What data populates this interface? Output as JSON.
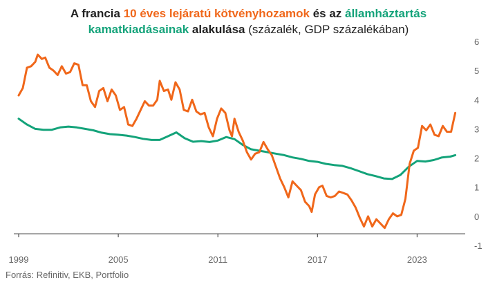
{
  "title": {
    "part1": "A francia ",
    "part2": "10 éves lejáratú kötvényhozamok",
    "part3": " és az ",
    "part4": "államháztartás",
    "part5": "kamatkiadásainak",
    "part6": " alakulása",
    "part7": " (százalék, GDP százalékában)"
  },
  "source": "Forrás: Refinitiv, EKB, Portfolio",
  "colors": {
    "bond": "#f0671a",
    "interest": "#14a37a",
    "axis": "#333333",
    "text": "#666666"
  },
  "chart_data": {
    "type": "line",
    "title": "A francia 10 éves lejáratú kötvényhozamok és az államháztartás kamatkiadásainak alakulása (százalék, GDP százalékában)",
    "xlabel": "",
    "ylabel": "",
    "xlim": [
      1999,
      2025.9
    ],
    "ylim": [
      -1,
      6
    ],
    "x_ticks": [
      1999,
      2005,
      2011,
      2017,
      2023
    ],
    "y_ticks": [
      6,
      5,
      4,
      3,
      2,
      1,
      0,
      -1
    ],
    "y_axis_side": "right",
    "grid": false,
    "legend": "none (series named in title)",
    "series": [
      {
        "name": "10 éves lejáratú kötvényhozamok",
        "color": "#f0671a",
        "points": [
          [
            1999.0,
            4.15
          ],
          [
            1999.25,
            4.4
          ],
          [
            1999.5,
            5.1
          ],
          [
            1999.75,
            5.15
          ],
          [
            2000.0,
            5.3
          ],
          [
            2000.15,
            5.55
          ],
          [
            2000.4,
            5.4
          ],
          [
            2000.6,
            5.45
          ],
          [
            2000.85,
            5.1
          ],
          [
            2001.1,
            5.0
          ],
          [
            2001.35,
            4.85
          ],
          [
            2001.6,
            5.15
          ],
          [
            2001.85,
            4.9
          ],
          [
            2002.1,
            4.95
          ],
          [
            2002.35,
            5.25
          ],
          [
            2002.6,
            5.2
          ],
          [
            2002.85,
            4.5
          ],
          [
            2003.1,
            4.5
          ],
          [
            2003.35,
            3.95
          ],
          [
            2003.6,
            3.75
          ],
          [
            2003.85,
            4.3
          ],
          [
            2004.1,
            4.4
          ],
          [
            2004.35,
            3.95
          ],
          [
            2004.6,
            4.35
          ],
          [
            2004.85,
            4.15
          ],
          [
            2005.1,
            3.65
          ],
          [
            2005.35,
            3.75
          ],
          [
            2005.6,
            3.15
          ],
          [
            2005.85,
            3.1
          ],
          [
            2006.1,
            3.35
          ],
          [
            2006.35,
            3.65
          ],
          [
            2006.6,
            3.95
          ],
          [
            2006.85,
            3.8
          ],
          [
            2007.1,
            3.8
          ],
          [
            2007.35,
            4.0
          ],
          [
            2007.5,
            4.65
          ],
          [
            2007.75,
            4.3
          ],
          [
            2008.0,
            4.35
          ],
          [
            2008.2,
            4.0
          ],
          [
            2008.45,
            4.6
          ],
          [
            2008.7,
            4.35
          ],
          [
            2008.95,
            3.65
          ],
          [
            2009.2,
            3.6
          ],
          [
            2009.45,
            4.0
          ],
          [
            2009.7,
            3.6
          ],
          [
            2009.95,
            3.5
          ],
          [
            2010.2,
            3.55
          ],
          [
            2010.45,
            3.05
          ],
          [
            2010.7,
            2.75
          ],
          [
            2010.95,
            3.35
          ],
          [
            2011.2,
            3.7
          ],
          [
            2011.45,
            3.55
          ],
          [
            2011.7,
            2.95
          ],
          [
            2011.85,
            2.75
          ],
          [
            2012.0,
            3.35
          ],
          [
            2012.25,
            2.9
          ],
          [
            2012.5,
            2.6
          ],
          [
            2012.75,
            2.2
          ],
          [
            2013.0,
            1.95
          ],
          [
            2013.25,
            2.15
          ],
          [
            2013.5,
            2.2
          ],
          [
            2013.75,
            2.55
          ],
          [
            2014.0,
            2.3
          ],
          [
            2014.25,
            2.1
          ],
          [
            2014.5,
            1.7
          ],
          [
            2014.75,
            1.3
          ],
          [
            2015.0,
            1.0
          ],
          [
            2015.25,
            0.65
          ],
          [
            2015.5,
            1.2
          ],
          [
            2015.75,
            1.05
          ],
          [
            2016.0,
            0.9
          ],
          [
            2016.25,
            0.5
          ],
          [
            2016.5,
            0.35
          ],
          [
            2016.65,
            0.15
          ],
          [
            2016.85,
            0.75
          ],
          [
            2017.1,
            1.0
          ],
          [
            2017.3,
            1.05
          ],
          [
            2017.55,
            0.7
          ],
          [
            2017.8,
            0.65
          ],
          [
            2018.05,
            0.7
          ],
          [
            2018.3,
            0.85
          ],
          [
            2018.55,
            0.8
          ],
          [
            2018.8,
            0.75
          ],
          [
            2019.05,
            0.55
          ],
          [
            2019.3,
            0.3
          ],
          [
            2019.55,
            -0.05
          ],
          [
            2019.8,
            -0.35
          ],
          [
            2020.05,
            0.0
          ],
          [
            2020.3,
            -0.35
          ],
          [
            2020.55,
            -0.1
          ],
          [
            2020.8,
            -0.25
          ],
          [
            2021.05,
            -0.4
          ],
          [
            2021.3,
            -0.1
          ],
          [
            2021.55,
            0.1
          ],
          [
            2021.8,
            0.0
          ],
          [
            2022.05,
            0.05
          ],
          [
            2022.3,
            0.6
          ],
          [
            2022.55,
            1.8
          ],
          [
            2022.8,
            2.25
          ],
          [
            2023.05,
            2.35
          ],
          [
            2023.3,
            3.1
          ],
          [
            2023.55,
            2.95
          ],
          [
            2023.8,
            3.15
          ],
          [
            2024.05,
            2.8
          ],
          [
            2024.3,
            2.75
          ],
          [
            2024.55,
            3.1
          ],
          [
            2024.8,
            2.9
          ],
          [
            2025.05,
            2.9
          ],
          [
            2025.3,
            3.55
          ]
        ]
      },
      {
        "name": "államháztartás kamatkiadásai",
        "color": "#14a37a",
        "points": [
          [
            1999.0,
            3.35
          ],
          [
            1999.5,
            3.15
          ],
          [
            2000.0,
            3.0
          ],
          [
            2000.5,
            2.97
          ],
          [
            2001.0,
            2.97
          ],
          [
            2001.5,
            3.05
          ],
          [
            2002.0,
            3.08
          ],
          [
            2002.5,
            3.05
          ],
          [
            2003.0,
            3.0
          ],
          [
            2003.5,
            2.95
          ],
          [
            2004.0,
            2.87
          ],
          [
            2004.5,
            2.82
          ],
          [
            2005.0,
            2.8
          ],
          [
            2005.5,
            2.77
          ],
          [
            2006.0,
            2.72
          ],
          [
            2006.5,
            2.66
          ],
          [
            2007.0,
            2.62
          ],
          [
            2007.5,
            2.62
          ],
          [
            2008.0,
            2.75
          ],
          [
            2008.5,
            2.88
          ],
          [
            2009.0,
            2.68
          ],
          [
            2009.5,
            2.56
          ],
          [
            2010.0,
            2.58
          ],
          [
            2010.5,
            2.55
          ],
          [
            2011.0,
            2.6
          ],
          [
            2011.5,
            2.72
          ],
          [
            2012.0,
            2.65
          ],
          [
            2012.5,
            2.45
          ],
          [
            2013.0,
            2.3
          ],
          [
            2013.5,
            2.25
          ],
          [
            2014.0,
            2.2
          ],
          [
            2014.5,
            2.15
          ],
          [
            2015.0,
            2.1
          ],
          [
            2015.5,
            2.02
          ],
          [
            2016.0,
            1.97
          ],
          [
            2016.5,
            1.9
          ],
          [
            2017.0,
            1.87
          ],
          [
            2017.5,
            1.8
          ],
          [
            2018.0,
            1.76
          ],
          [
            2018.5,
            1.73
          ],
          [
            2019.0,
            1.65
          ],
          [
            2019.5,
            1.55
          ],
          [
            2020.0,
            1.45
          ],
          [
            2020.5,
            1.38
          ],
          [
            2021.0,
            1.3
          ],
          [
            2021.5,
            1.28
          ],
          [
            2022.0,
            1.42
          ],
          [
            2022.5,
            1.7
          ],
          [
            2023.0,
            1.9
          ],
          [
            2023.5,
            1.88
          ],
          [
            2024.0,
            1.93
          ],
          [
            2024.5,
            2.02
          ],
          [
            2025.0,
            2.05
          ],
          [
            2025.3,
            2.1
          ]
        ]
      }
    ]
  }
}
